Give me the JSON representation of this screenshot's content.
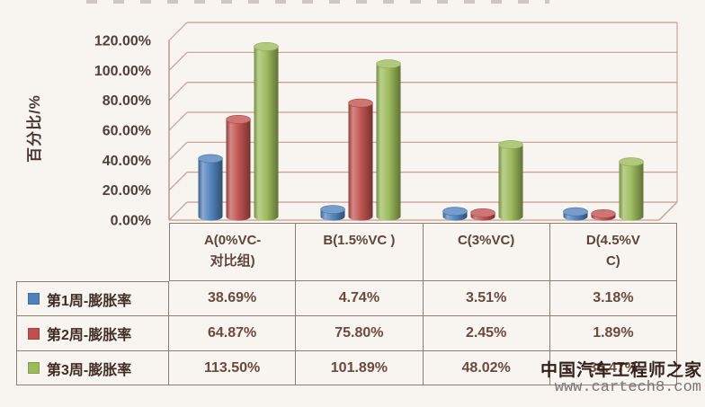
{
  "chart_data": {
    "type": "bar",
    "style": "3d-cylinder",
    "title": "",
    "ylabel": "百分比/%",
    "xlabel": "",
    "categories": [
      "A(0%VC-对比组)",
      "B(1.5%VC )",
      "C(3%VC)",
      "D(4.5%VC)"
    ],
    "categories_display": [
      "A(0%VC-\n对比组)",
      "B(1.5%VC )",
      "C(3%VC)",
      "D(4.5%V\nC)"
    ],
    "series": [
      {
        "name": "第1周-膨胀率",
        "color": "#4f81bd",
        "values": [
          38.69,
          4.74,
          3.51,
          3.18
        ],
        "display": [
          "38.69%",
          "4.74%",
          "3.51%",
          "3.18%"
        ]
      },
      {
        "name": "第2周-膨胀率",
        "color": "#c0504d",
        "values": [
          64.87,
          75.8,
          2.45,
          1.89
        ],
        "display": [
          "64.87%",
          "75.80%",
          "2.45%",
          "1.89%"
        ]
      },
      {
        "name": "第3周-膨胀率",
        "color": "#9bbb59",
        "values": [
          113.5,
          101.89,
          48.02,
          36.47
        ],
        "display": [
          "113.50%",
          "101.89%",
          "48.02%",
          "36.47%"
        ]
      }
    ],
    "ylim": [
      0,
      120
    ],
    "ytick_step": 20,
    "yticks": [
      {
        "value": 120,
        "label": "120.00%"
      },
      {
        "value": 100,
        "label": "100.00%"
      },
      {
        "value": 80,
        "label": "80.00%"
      },
      {
        "value": 60,
        "label": "60.00%"
      },
      {
        "value": 40,
        "label": "40.00%"
      },
      {
        "value": 20,
        "label": "20.00%"
      },
      {
        "value": 0,
        "label": "0.00%"
      }
    ],
    "grid": true,
    "legend_position": "data-table-left-column"
  },
  "watermark": {
    "title": "中国汽车工程师之家",
    "url": "www.cartech8.com"
  },
  "colors": {
    "background": "#f8f5f1",
    "gridline": "#c79e94",
    "axis_line": "#b18a80",
    "axis_text": "#50403a",
    "table_border": "#8f7d74",
    "table_text": "#5d443c",
    "legend_text": "#3f2c25",
    "watermark_title": "#33211c",
    "watermark_url": "#7b7470"
  }
}
